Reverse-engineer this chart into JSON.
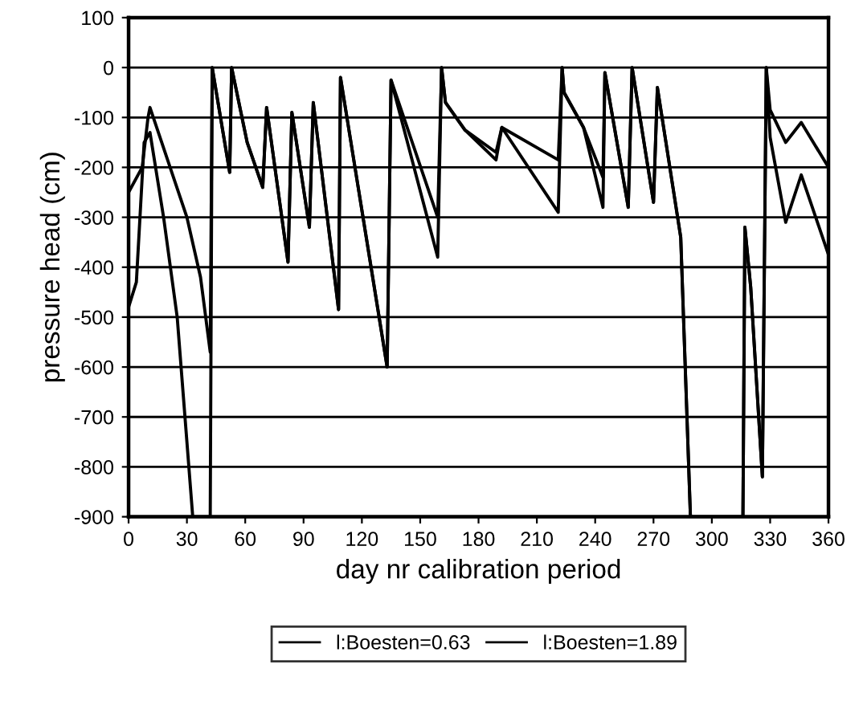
{
  "chart_data": {
    "type": "line",
    "xlabel": "day nr calibration period",
    "ylabel": "pressure head (cm)",
    "xlim": [
      0,
      360
    ],
    "xticks": [
      0,
      30,
      60,
      90,
      120,
      150,
      180,
      210,
      240,
      270,
      300,
      330,
      360
    ],
    "ylim": [
      -900,
      100
    ],
    "yticks": [
      -900,
      -800,
      -700,
      -600,
      -500,
      -400,
      -300,
      -200,
      -100,
      0,
      100
    ],
    "grid": "y",
    "legend": "bottom",
    "marker": "none",
    "line_style": "solid",
    "series": [
      {
        "name": "l:Boesten=0.63",
        "color": "#000000",
        "x": [
          0,
          4,
          8,
          11,
          18,
          25,
          33,
          42,
          43,
          52,
          53,
          61,
          69,
          71,
          82,
          84,
          93,
          95,
          108,
          109,
          133,
          135,
          159,
          161,
          163,
          173,
          189,
          192,
          221,
          223,
          224,
          234,
          244,
          245,
          257,
          259,
          270,
          272,
          284,
          289,
          316,
          317,
          320,
          326,
          328,
          330,
          338,
          346,
          360
        ],
        "values": [
          -480,
          -430,
          -150,
          -130,
          -300,
          -500,
          -900,
          -900,
          0,
          -210,
          0,
          -150,
          -240,
          -80,
          -390,
          -90,
          -320,
          -70,
          -485,
          -20,
          -600,
          -25,
          -380,
          0,
          -70,
          -125,
          -185,
          -120,
          -290,
          0,
          -50,
          -120,
          -280,
          -10,
          -280,
          0,
          -270,
          -40,
          -340,
          -900,
          -900,
          -320,
          -440,
          -820,
          0,
          -140,
          -310,
          -215,
          -375
        ]
      },
      {
        "name": "l:Boesten=1.89",
        "color": "#000000",
        "x": [
          0,
          7,
          10,
          11,
          30,
          37,
          42,
          43,
          52,
          53,
          61,
          69,
          71,
          82,
          84,
          93,
          95,
          108,
          109,
          133,
          135,
          159,
          161,
          163,
          173,
          189,
          192,
          221,
          223,
          224,
          234,
          244,
          245,
          257,
          259,
          270,
          272,
          284,
          289,
          316,
          317,
          320,
          326,
          328,
          330,
          338,
          346,
          360
        ],
        "values": [
          -250,
          -200,
          -100,
          -80,
          -300,
          -420,
          -570,
          0,
          -210,
          0,
          -150,
          -240,
          -80,
          -390,
          -90,
          -320,
          -70,
          -485,
          -20,
          -600,
          -25,
          -300,
          0,
          -70,
          -125,
          -170,
          -120,
          -185,
          0,
          -50,
          -120,
          -220,
          -10,
          -280,
          0,
          -270,
          -40,
          -340,
          -900,
          -900,
          -320,
          -440,
          -820,
          0,
          -85,
          -150,
          -110,
          -200
        ]
      }
    ]
  }
}
